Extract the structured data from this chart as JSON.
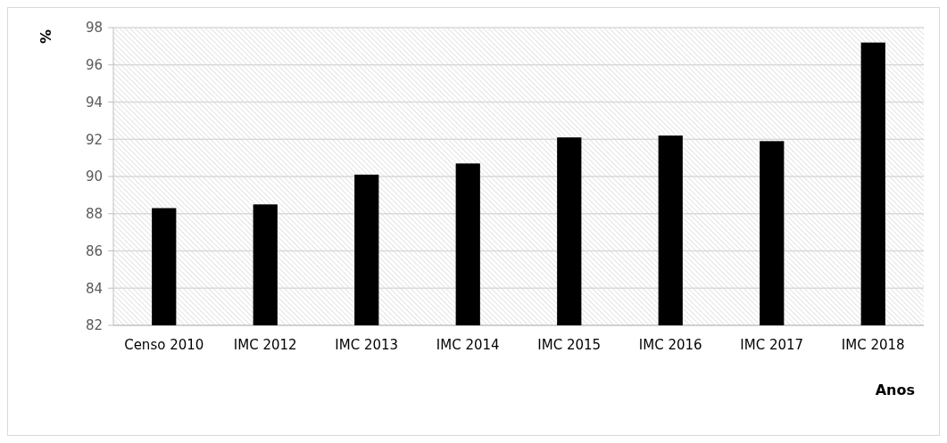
{
  "chart_data": {
    "type": "bar",
    "xlabel": "Anos",
    "ylabel": "%",
    "categories": [
      "Censo 2010",
      "IMC 2012",
      "IMC 2013",
      "IMC 2014",
      "IMC 2015",
      "IMC 2016",
      "IMC 2017",
      "IMC 2018"
    ],
    "values": [
      88.3,
      88.5,
      90.1,
      90.7,
      92.1,
      92.2,
      91.9,
      97.2
    ],
    "color": "#000000",
    "ylim": [
      82,
      98
    ],
    "yticks": [
      82,
      84,
      86,
      88,
      90,
      92,
      94,
      96,
      98
    ],
    "grid": "y"
  }
}
